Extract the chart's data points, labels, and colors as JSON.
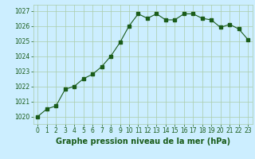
{
  "x": [
    0,
    1,
    2,
    3,
    4,
    5,
    6,
    7,
    8,
    9,
    10,
    11,
    12,
    13,
    14,
    15,
    16,
    17,
    18,
    19,
    20,
    21,
    22,
    23
  ],
  "y": [
    1020.0,
    1020.5,
    1020.7,
    1021.8,
    1022.0,
    1022.5,
    1022.8,
    1023.3,
    1024.0,
    1024.9,
    1026.0,
    1026.8,
    1026.5,
    1026.8,
    1026.4,
    1026.4,
    1026.8,
    1026.8,
    1026.5,
    1026.4,
    1025.9,
    1026.1,
    1025.8,
    1025.1
  ],
  "line_color": "#1a5c1a",
  "marker": "s",
  "marker_size": 2.5,
  "bg_color": "#cceeff",
  "grid_color": "#aaccaa",
  "title": "Graphe pression niveau de la mer (hPa)",
  "ylim": [
    1019.5,
    1027.4
  ],
  "yticks": [
    1020,
    1021,
    1022,
    1023,
    1024,
    1025,
    1026,
    1027
  ],
  "xlim": [
    -0.5,
    23.5
  ],
  "xticks": [
    0,
    1,
    2,
    3,
    4,
    5,
    6,
    7,
    8,
    9,
    10,
    11,
    12,
    13,
    14,
    15,
    16,
    17,
    18,
    19,
    20,
    21,
    22,
    23
  ],
  "tick_fontsize": 5.5,
  "title_fontsize": 7.0
}
